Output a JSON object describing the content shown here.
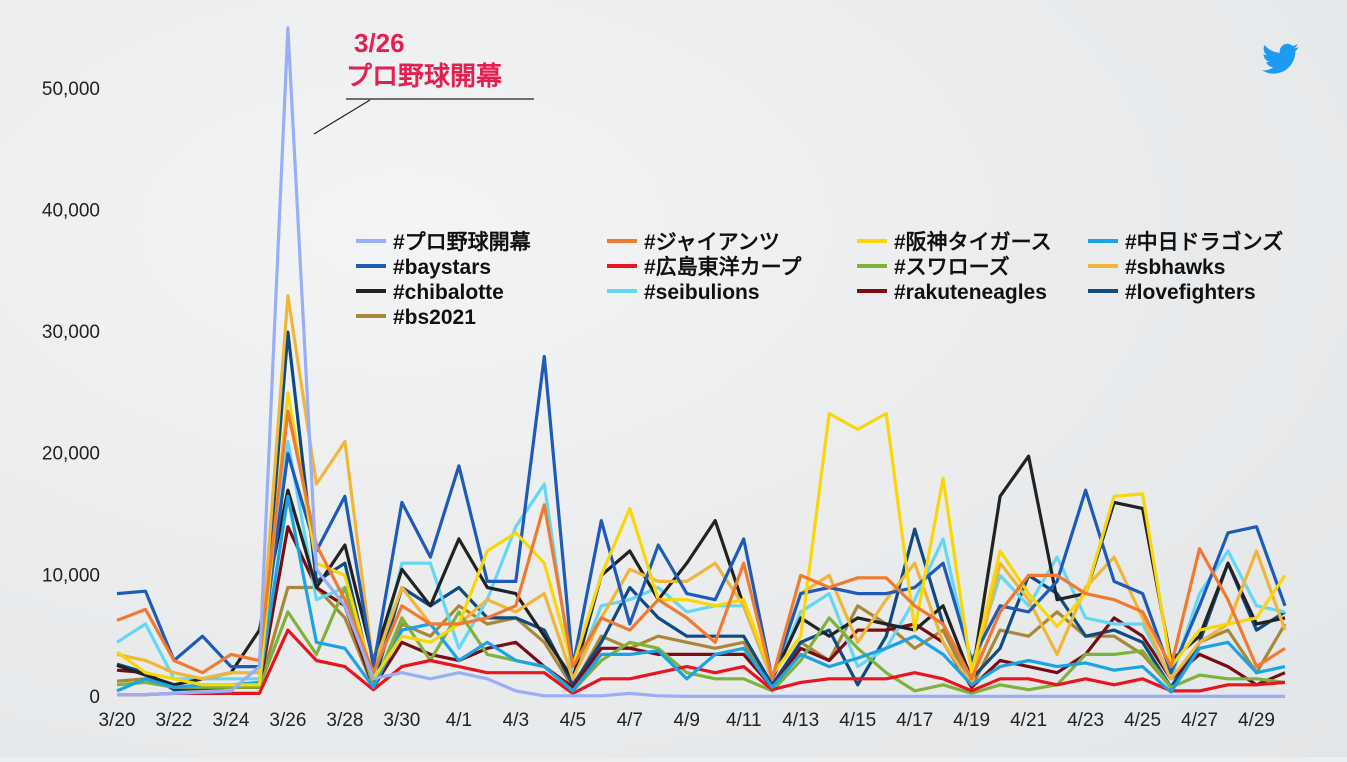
{
  "chart_data": {
    "type": "line",
    "title": "",
    "xlabel": "",
    "ylabel": "",
    "ylim": [
      0,
      55000
    ],
    "yticks": [
      0,
      10000,
      20000,
      30000,
      40000,
      50000
    ],
    "ytick_labels": [
      "0",
      "10,000",
      "20,000",
      "30,000",
      "40,000",
      "50,000"
    ],
    "x": [
      "3/20",
      "3/21",
      "3/22",
      "3/23",
      "3/24",
      "3/25",
      "3/26",
      "3/27",
      "3/28",
      "3/29",
      "3/30",
      "3/31",
      "4/1",
      "4/2",
      "4/3",
      "4/4",
      "4/5",
      "4/6",
      "4/7",
      "4/8",
      "4/9",
      "4/10",
      "4/11",
      "4/12",
      "4/13",
      "4/14",
      "4/15",
      "4/16",
      "4/17",
      "4/18",
      "4/19",
      "4/20",
      "4/21",
      "4/22",
      "4/23",
      "4/24",
      "4/25",
      "4/26",
      "4/27",
      "4/28",
      "4/29",
      "4/30"
    ],
    "xtick_labels": [
      "3/20",
      "3/22",
      "3/24",
      "3/26",
      "3/28",
      "3/30",
      "4/1",
      "4/3",
      "4/5",
      "4/7",
      "4/9",
      "4/11",
      "4/13",
      "4/15",
      "4/17",
      "4/19",
      "4/21",
      "4/23",
      "4/25",
      "4/27",
      "4/29"
    ],
    "legend_placement": "center-right",
    "grid": false,
    "annotation": {
      "date": "3/26",
      "text": "プロ野球開幕",
      "x": "3/26"
    },
    "series": [
      {
        "name": "#プロ野球開幕",
        "color": "#98aef5",
        "values": [
          200,
          200,
          300,
          400,
          500,
          2500,
          55000,
          10500,
          7500,
          1500,
          2000,
          1500,
          2000,
          1500,
          500,
          100,
          100,
          100,
          300,
          100,
          50,
          50,
          50,
          50,
          50,
          50,
          50,
          50,
          50,
          50,
          50,
          50,
          50,
          50,
          50,
          50,
          50,
          50,
          50,
          50,
          50,
          50
        ]
      },
      {
        "name": "#ジャイアンツ",
        "color": "#f07a30",
        "values": [
          6300,
          7200,
          3000,
          2000,
          3500,
          3000,
          23500,
          12500,
          8000,
          2000,
          7500,
          6000,
          6000,
          6500,
          7500,
          15800,
          2500,
          6500,
          5500,
          8000,
          6500,
          4500,
          11000,
          1500,
          10000,
          9000,
          9800,
          9800,
          7500,
          6000,
          1500,
          7000,
          10000,
          10000,
          8500,
          8000,
          7000,
          2500,
          12200,
          8000,
          2500,
          4000
        ]
      },
      {
        "name": "#阪神タイガース",
        "color": "#f8d70a",
        "values": [
          3700,
          2000,
          1500,
          1000,
          1000,
          1000,
          25000,
          11000,
          10000,
          1500,
          5000,
          4500,
          6000,
          12000,
          13500,
          11000,
          2500,
          10000,
          15500,
          8000,
          8000,
          7500,
          8000,
          1800,
          5000,
          23300,
          22000,
          23300,
          5500,
          18000,
          2000,
          12000,
          8500,
          5800,
          8500,
          16500,
          16700,
          2500,
          5500,
          6000,
          6500,
          10000
        ]
      },
      {
        "name": "#中日ドラゴンズ",
        "color": "#1ba3e3",
        "values": [
          500,
          1500,
          800,
          1000,
          1000,
          1200,
          16500,
          4500,
          4000,
          800,
          5500,
          6000,
          3000,
          4500,
          3000,
          2500,
          500,
          3500,
          3500,
          3800,
          1500,
          3500,
          4000,
          800,
          3500,
          2500,
          3200,
          4000,
          5000,
          3500,
          1000,
          2500,
          3000,
          2500,
          2800,
          2200,
          2500,
          400,
          4000,
          4500,
          2000,
          2500
        ]
      },
      {
        "name": "#baystars",
        "color": "#1e5bb8",
        "values": [
          8500,
          8700,
          3000,
          5000,
          2500,
          2500,
          20000,
          12000,
          16500,
          2500,
          16000,
          11500,
          19000,
          9500,
          9500,
          28000,
          2500,
          14500,
          6000,
          12500,
          8500,
          8000,
          13000,
          1500,
          8500,
          9000,
          8500,
          8500,
          9000,
          11000,
          3000,
          7500,
          7000,
          9500,
          17000,
          9500,
          8500,
          2000,
          7500,
          13500,
          14000,
          7500
        ]
      },
      {
        "name": "#広島東洋カープ",
        "color": "#e8151f",
        "values": [
          200,
          200,
          300,
          300,
          300,
          300,
          5500,
          3000,
          2500,
          600,
          2500,
          3000,
          2500,
          2000,
          2000,
          2000,
          300,
          1500,
          1500,
          2000,
          2500,
          2000,
          2500,
          600,
          1200,
          1500,
          1500,
          1500,
          2000,
          1500,
          500,
          1500,
          1500,
          1000,
          1500,
          1000,
          1500,
          500,
          500,
          1000,
          1000,
          1200
        ]
      },
      {
        "name": "#スワローズ",
        "color": "#7fb13d",
        "values": [
          1000,
          1200,
          800,
          800,
          800,
          800,
          7000,
          3500,
          9000,
          800,
          6500,
          3000,
          7000,
          3500,
          3000,
          2500,
          500,
          3000,
          4500,
          4000,
          2000,
          1500,
          1500,
          500,
          3000,
          6500,
          4000,
          2000,
          500,
          1000,
          300,
          1000,
          600,
          1000,
          3500,
          3500,
          3800,
          800,
          1800,
          1500,
          1500,
          1200
        ]
      },
      {
        "name": "#sbhawks",
        "color": "#f0b63a",
        "values": [
          3500,
          3000,
          2000,
          1500,
          2000,
          2000,
          33000,
          17500,
          21000,
          2500,
          9000,
          6000,
          6000,
          8000,
          7000,
          8500,
          1500,
          6500,
          10500,
          9500,
          9500,
          11000,
          7500,
          1500,
          8500,
          10000,
          4500,
          8000,
          11000,
          4500,
          1000,
          11000,
          8000,
          3500,
          9000,
          11500,
          6500,
          1500,
          4500,
          6000,
          12000,
          5500
        ]
      },
      {
        "name": "#chibalotte",
        "color": "#222222",
        "values": [
          2600,
          1800,
          1000,
          1500,
          2000,
          5500,
          17000,
          9000,
          12500,
          3000,
          10500,
          7500,
          13000,
          9000,
          8500,
          5000,
          1500,
          10000,
          12000,
          8000,
          11000,
          14500,
          7500,
          1500,
          6500,
          5000,
          6500,
          6000,
          5500,
          7500,
          1500,
          16500,
          19800,
          8000,
          8500,
          16000,
          15500,
          3000,
          5000,
          11000,
          6000,
          6500
        ]
      },
      {
        "name": "#seibulions",
        "color": "#64d7f5",
        "values": [
          4500,
          6000,
          1500,
          1500,
          1500,
          1500,
          21000,
          8000,
          9000,
          1500,
          11000,
          11000,
          4000,
          8000,
          14000,
          17500,
          1500,
          7500,
          8000,
          9000,
          7000,
          7500,
          7500,
          1500,
          7000,
          8500,
          2500,
          4000,
          8000,
          13000,
          2500,
          10000,
          7500,
          11500,
          6500,
          6000,
          6000,
          1500,
          8500,
          12000,
          7500,
          7000
        ]
      },
      {
        "name": "#rakuteneagles",
        "color": "#7a0d14",
        "values": [
          2200,
          2000,
          700,
          800,
          800,
          800,
          14000,
          9000,
          7500,
          800,
          4500,
          3500,
          3000,
          4000,
          4500,
          2500,
          800,
          4000,
          4000,
          3500,
          3500,
          3500,
          3500,
          800,
          4000,
          3000,
          5500,
          5500,
          6000,
          4500,
          800,
          3000,
          2500,
          2000,
          3500,
          6500,
          5000,
          1500,
          3500,
          2500,
          1000,
          2000
        ]
      },
      {
        "name": "#lovefighters",
        "color": "#0f4a80",
        "values": [
          2700,
          2000,
          600,
          700,
          800,
          1000,
          30000,
          9500,
          11000,
          1000,
          9000,
          7500,
          9000,
          6500,
          6500,
          5500,
          1000,
          4500,
          9000,
          6500,
          5000,
          5000,
          5000,
          1000,
          4500,
          5500,
          1000,
          5000,
          13800,
          6000,
          1500,
          4000,
          10000,
          8500,
          5000,
          5500,
          4500,
          800,
          4500,
          11000,
          5500,
          7000
        ]
      },
      {
        "name": "#bs2021",
        "color": "#a88738",
        "values": [
          1300,
          1500,
          800,
          800,
          800,
          800,
          9000,
          9000,
          6500,
          800,
          6000,
          5000,
          7500,
          6000,
          6500,
          4500,
          800,
          5000,
          4000,
          5000,
          4500,
          4000,
          4500,
          800,
          4500,
          3000,
          7500,
          6000,
          4000,
          5500,
          800,
          5500,
          5000,
          7000,
          5000,
          5000,
          3500,
          800,
          4500,
          5500,
          2000,
          6000
        ]
      }
    ]
  },
  "icons": {
    "brand": "twitter-bird-icon",
    "brand_color": "#1d9bf0"
  }
}
